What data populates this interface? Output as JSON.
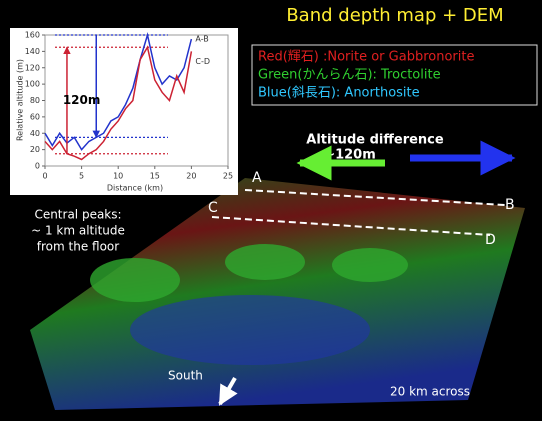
{
  "title": "Band depth map + DEM",
  "legend": [
    "Red(輝石) :Norite or Gabbronorite",
    "Green(かんらん石): Troctolite",
    "Blue(斜長石): Anorthosite"
  ],
  "altitude_label": [
    "Altitude difference",
    "~120m"
  ],
  "profile_labels": [
    "A",
    "B",
    "C",
    "D"
  ],
  "peaks_note": [
    "Central peaks:",
    "~ 1 km altitude",
    "from the floor"
  ],
  "south": "South",
  "scale_note": "20 km across",
  "chart_data": {
    "type": "line",
    "xlabel": "Distance (km)",
    "ylabel": "Relative altitude (m)",
    "annotation": "120m",
    "x": [
      0,
      1,
      2,
      3,
      4,
      5,
      6,
      7,
      8,
      9,
      10,
      11,
      12,
      13,
      14,
      15,
      16,
      17,
      18,
      19,
      20
    ],
    "series": [
      {
        "name": "A-B",
        "color": "#2233cc",
        "values": [
          40,
          25,
          40,
          28,
          35,
          20,
          30,
          35,
          40,
          55,
          60,
          75,
          95,
          130,
          160,
          120,
          100,
          110,
          105,
          120,
          155
        ]
      },
      {
        "name": "C-D",
        "color": "#cc2233",
        "values": [
          30,
          20,
          30,
          15,
          12,
          8,
          15,
          20,
          30,
          45,
          55,
          70,
          80,
          130,
          145,
          105,
          90,
          80,
          110,
          90,
          140
        ]
      }
    ],
    "hlines": [
      {
        "value": 160,
        "color": "#2233cc"
      },
      {
        "value": 145,
        "color": "#cc2233"
      },
      {
        "value": 35,
        "color": "#2233cc"
      },
      {
        "value": 15,
        "color": "#cc2233"
      }
    ],
    "xlim": [
      0,
      25
    ],
    "xticks": [
      0,
      5,
      10,
      15,
      20,
      25
    ],
    "ylim": [
      0,
      160
    ],
    "yticks": [
      0,
      20,
      40,
      60,
      80,
      100,
      120,
      140,
      160
    ]
  }
}
